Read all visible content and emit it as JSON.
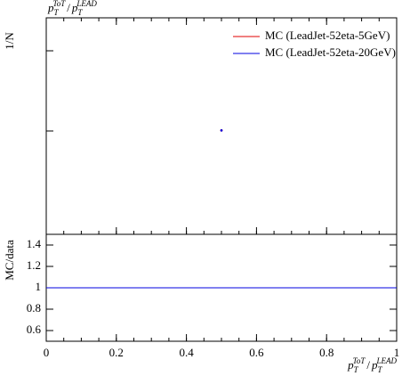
{
  "chart_data": [
    {
      "type": "scatter",
      "title": [
        "p",
        "T",
        "ToT",
        "/",
        "p",
        "T",
        "LEAD"
      ],
      "ylabel": "1/N",
      "xlim": [
        0,
        1
      ],
      "ylim": [
        0,
        2.5
      ],
      "legend": "upper right",
      "series": [
        {
          "name": "MC (LeadJet-52eta-5GeV)",
          "color": "#e00000",
          "x": [
            0.5
          ],
          "values": [
            1.2
          ]
        },
        {
          "name": "MC (LeadJet-52eta-20GeV)",
          "color": "#0000e0",
          "x": [
            0.5
          ],
          "values": [
            1.2
          ]
        }
      ]
    },
    {
      "type": "line",
      "ylabel": "MC/data",
      "xlabel": [
        "p",
        "T",
        "ToT",
        "/",
        "p",
        "T",
        "LEAD"
      ],
      "xlim": [
        0,
        1
      ],
      "xticks": [
        0,
        0.2,
        0.4,
        0.6,
        0.8,
        1
      ],
      "ylim": [
        0.5,
        1.5
      ],
      "yticks": [
        0.6,
        0.8,
        1,
        1.2,
        1.4
      ],
      "series": [
        {
          "name": "MC (LeadJet-52eta-5GeV)",
          "color": "#e00000",
          "x": [
            0,
            1
          ],
          "values": [
            1,
            1
          ]
        },
        {
          "name": "MC (LeadJet-52eta-20GeV)",
          "color": "#0000e0",
          "x": [
            0,
            1
          ],
          "values": [
            1,
            1
          ]
        }
      ]
    }
  ]
}
